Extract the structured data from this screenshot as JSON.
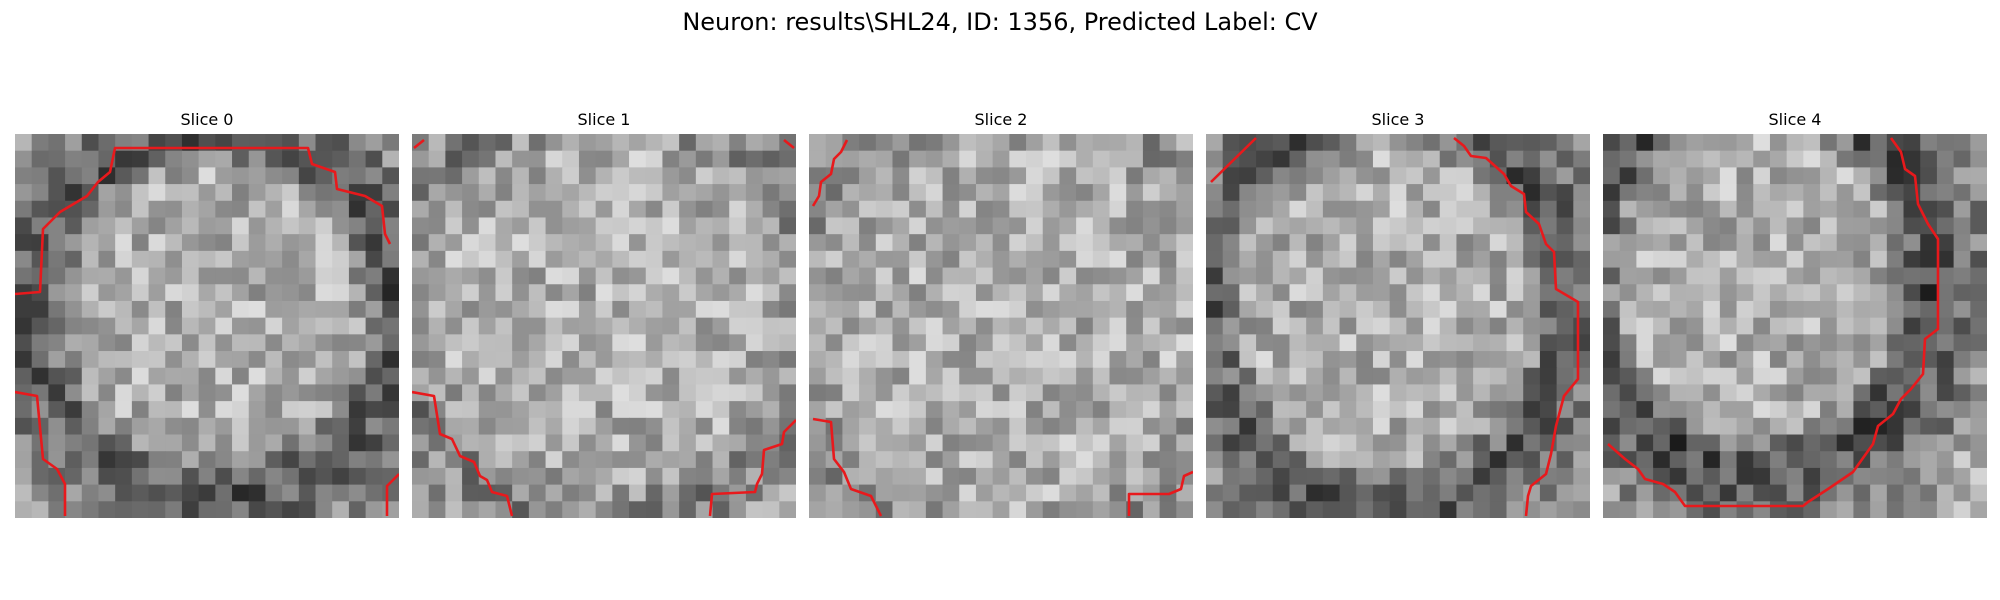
{
  "figure": {
    "title": "Neuron: results\\SHL24, ID: 1356, Predicted Label: CV"
  },
  "panels": [
    {
      "title": "Slice 0"
    },
    {
      "title": "Slice 1"
    },
    {
      "title": "Slice 2"
    },
    {
      "title": "Slice 3"
    },
    {
      "title": "Slice 4"
    }
  ],
  "colors": {
    "contour": "#e8191c",
    "colormap": "grayscale"
  },
  "image": {
    "grid_size": 23
  }
}
